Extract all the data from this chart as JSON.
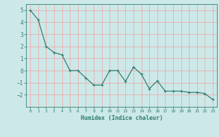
{
  "x": [
    0,
    1,
    2,
    3,
    4,
    5,
    6,
    7,
    8,
    9,
    10,
    11,
    12,
    13,
    14,
    15,
    16,
    17,
    18,
    19,
    20,
    21,
    22,
    23
  ],
  "y": [
    5.0,
    4.2,
    2.0,
    1.5,
    1.3,
    -0.0,
    -0.0,
    -0.6,
    -1.2,
    -1.2,
    -0.0,
    -0.0,
    -0.9,
    0.3,
    -0.3,
    -1.5,
    -0.85,
    -1.7,
    -1.7,
    -1.7,
    -1.8,
    -1.8,
    -1.9,
    -2.4
  ],
  "line_color": "#2e7d6e",
  "marker": "+",
  "marker_size": 3,
  "linewidth": 0.9,
  "xlabel": "Humidex (Indice chaleur)",
  "xlabel_fontsize": 6,
  "xlim": [
    -0.5,
    23.5
  ],
  "ylim": [
    -3.0,
    5.5
  ],
  "yticks": [
    -2,
    -1,
    0,
    1,
    2,
    3,
    4,
    5
  ],
  "xticks": [
    0,
    1,
    2,
    3,
    4,
    5,
    6,
    7,
    8,
    9,
    10,
    11,
    12,
    13,
    14,
    15,
    16,
    17,
    18,
    19,
    20,
    21,
    22,
    23
  ],
  "background_color": "#cce8e8",
  "grid_color": "#f0a0a0",
  "tick_color": "#2e7d6e",
  "axes_color": "#2e7d6e",
  "label_color": "#2e7d6e"
}
